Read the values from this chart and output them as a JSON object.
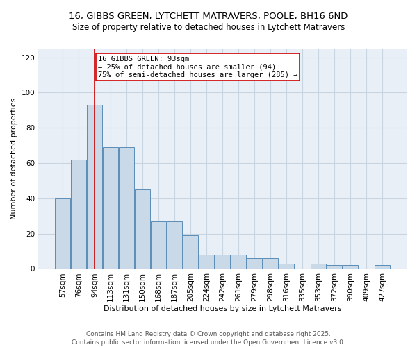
{
  "title_line1": "16, GIBBS GREEN, LYTCHETT MATRAVERS, POOLE, BH16 6ND",
  "title_line2": "Size of property relative to detached houses in Lytchett Matravers",
  "xlabel": "Distribution of detached houses by size in Lytchett Matravers",
  "ylabel": "Number of detached properties",
  "categories": [
    "57sqm",
    "76sqm",
    "94sqm",
    "113sqm",
    "131sqm",
    "150sqm",
    "168sqm",
    "187sqm",
    "205sqm",
    "224sqm",
    "242sqm",
    "261sqm",
    "279sqm",
    "298sqm",
    "316sqm",
    "335sqm",
    "353sqm",
    "372sqm",
    "390sqm",
    "409sqm",
    "427sqm"
  ],
  "values": [
    40,
    62,
    93,
    69,
    69,
    45,
    27,
    27,
    19,
    8,
    8,
    8,
    6,
    6,
    3,
    0,
    3,
    2,
    2,
    0,
    2
  ],
  "bar_color": "#c9d9e8",
  "bar_edge_color": "#5b8db8",
  "vline_x_index": 2,
  "vline_color": "#cc0000",
  "annotation_text": "16 GIBBS GREEN: 93sqm\n← 25% of detached houses are smaller (94)\n75% of semi-detached houses are larger (285) →",
  "annotation_box_color": "#cc0000",
  "ylim": [
    0,
    125
  ],
  "yticks": [
    0,
    20,
    40,
    60,
    80,
    100,
    120
  ],
  "grid_color": "#c8d4e0",
  "bg_color": "#e8eff7",
  "footer_text": "Contains HM Land Registry data © Crown copyright and database right 2025.\nContains public sector information licensed under the Open Government Licence v3.0.",
  "title_fontsize": 9.5,
  "subtitle_fontsize": 8.5,
  "axis_label_fontsize": 8,
  "tick_fontsize": 7.5,
  "annotation_fontsize": 7.5,
  "footer_fontsize": 6.5
}
